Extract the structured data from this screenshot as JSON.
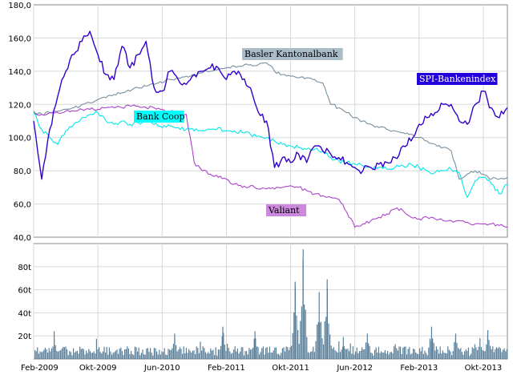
{
  "chart_data": [
    {
      "type": "line",
      "title": "",
      "xlabel": "",
      "ylabel": "",
      "ylim": [
        40,
        180
      ],
      "grid": true,
      "x_range": [
        "2009-02",
        "2014-01"
      ],
      "x_ticks": [
        "Feb-2009",
        "Okt-2009",
        "Jun-2010",
        "Feb-2011",
        "Okt-2011",
        "Jun-2012",
        "Feb-2013",
        "Okt-2013"
      ],
      "y_ticks": [
        "40,0",
        "60,0",
        "80,0",
        "100,0",
        "120,0",
        "140,0",
        "160,0",
        "180,0"
      ],
      "series": [
        {
          "name": "SPI-Bankenindex",
          "color": "#3300cc",
          "label_bg": "#2200dd",
          "label_fg": "#ffffff",
          "x": [
            "2009-02",
            "2009-03",
            "2009-04",
            "2009-05",
            "2009-06",
            "2009-07",
            "2009-08",
            "2009-09",
            "2009-10",
            "2009-11",
            "2009-12",
            "2010-01",
            "2010-02",
            "2010-03",
            "2010-04",
            "2010-05",
            "2010-06",
            "2010-07",
            "2010-08",
            "2010-09",
            "2010-10",
            "2010-11",
            "2010-12",
            "2011-01",
            "2011-02",
            "2011-03",
            "2011-04",
            "2011-05",
            "2011-06",
            "2011-07",
            "2011-08",
            "2011-09",
            "2011-10",
            "2011-11",
            "2011-12",
            "2012-01",
            "2012-02",
            "2012-03",
            "2012-04",
            "2012-05",
            "2012-06",
            "2012-07",
            "2012-08",
            "2012-09",
            "2012-10",
            "2012-11",
            "2012-12",
            "2013-01",
            "2013-02",
            "2013-03",
            "2013-04",
            "2013-05",
            "2013-06",
            "2013-07",
            "2013-08",
            "2013-09",
            "2013-10",
            "2013-11",
            "2013-12",
            "2014-01"
          ],
          "values": [
            110,
            75,
            105,
            125,
            140,
            150,
            158,
            164,
            150,
            138,
            135,
            155,
            142,
            150,
            158,
            130,
            128,
            140,
            135,
            132,
            138,
            140,
            142,
            142,
            135,
            140,
            135,
            130,
            115,
            110,
            82,
            88,
            85,
            90,
            85,
            95,
            92,
            90,
            88,
            85,
            82,
            80,
            82,
            84,
            85,
            88,
            95,
            98,
            108,
            112,
            115,
            120,
            120,
            110,
            108,
            120,
            128,
            118,
            112,
            118
          ]
        },
        {
          "name": "Basler Kantonalbank",
          "color": "#7890a0",
          "label_bg": "#a9bcc7",
          "label_fg": "#000000",
          "x": [
            "2009-02",
            "2009-03",
            "2009-04",
            "2009-05",
            "2009-06",
            "2009-07",
            "2009-08",
            "2009-09",
            "2009-10",
            "2009-11",
            "2009-12",
            "2010-01",
            "2010-02",
            "2010-03",
            "2010-04",
            "2010-05",
            "2010-06",
            "2010-07",
            "2010-08",
            "2010-09",
            "2010-10",
            "2010-11",
            "2010-12",
            "2011-01",
            "2011-02",
            "2011-03",
            "2011-04",
            "2011-05",
            "2011-06",
            "2011-07",
            "2011-08",
            "2011-09",
            "2011-10",
            "2011-11",
            "2011-12",
            "2012-01",
            "2012-02",
            "2012-03",
            "2012-04",
            "2012-05",
            "2012-06",
            "2012-07",
            "2012-08",
            "2012-09",
            "2012-10",
            "2012-11",
            "2012-12",
            "2013-01",
            "2013-02",
            "2013-03",
            "2013-04",
            "2013-05",
            "2013-06",
            "2013-07",
            "2013-08",
            "2013-09",
            "2013-10",
            "2013-11",
            "2013-12",
            "2014-01"
          ],
          "values": [
            116,
            114,
            115,
            116,
            117,
            118,
            120,
            121,
            123,
            124,
            126,
            127,
            128,
            130,
            131,
            132,
            133,
            135,
            136,
            137,
            138,
            139,
            140,
            141,
            142,
            143,
            143,
            144,
            144,
            145,
            140,
            138,
            137,
            136,
            136,
            135,
            133,
            120,
            118,
            115,
            112,
            110,
            108,
            106,
            105,
            104,
            103,
            102,
            100,
            98,
            96,
            94,
            92,
            75,
            78,
            80,
            78,
            75,
            75,
            76
          ]
        },
        {
          "name": "Bank Coop",
          "color": "#00e8e8",
          "label_bg": "#00ffff",
          "label_fg": "#000000",
          "x": [
            "2009-02",
            "2009-03",
            "2009-04",
            "2009-05",
            "2009-06",
            "2009-07",
            "2009-08",
            "2009-09",
            "2009-10",
            "2009-11",
            "2009-12",
            "2010-01",
            "2010-02",
            "2010-03",
            "2010-04",
            "2010-05",
            "2010-06",
            "2010-07",
            "2010-08",
            "2010-09",
            "2010-10",
            "2010-11",
            "2010-12",
            "2011-01",
            "2011-02",
            "2011-03",
            "2011-04",
            "2011-05",
            "2011-06",
            "2011-07",
            "2011-08",
            "2011-09",
            "2011-10",
            "2011-11",
            "2011-12",
            "2012-01",
            "2012-02",
            "2012-03",
            "2012-04",
            "2012-05",
            "2012-06",
            "2012-07",
            "2012-08",
            "2012-09",
            "2012-10",
            "2012-11",
            "2012-12",
            "2013-01",
            "2013-02",
            "2013-03",
            "2013-04",
            "2013-05",
            "2013-06",
            "2013-07",
            "2013-08",
            "2013-09",
            "2013-10",
            "2013-11",
            "2013-12",
            "2014-01"
          ],
          "values": [
            115,
            105,
            100,
            96,
            104,
            108,
            112,
            114,
            115,
            110,
            108,
            110,
            108,
            109,
            110,
            108,
            106,
            107,
            106,
            105,
            104,
            104,
            105,
            106,
            104,
            104,
            103,
            102,
            101,
            100,
            98,
            96,
            95,
            94,
            93,
            93,
            92,
            88,
            86,
            85,
            84,
            83,
            82,
            82,
            81,
            82,
            83,
            84,
            82,
            80,
            79,
            80,
            81,
            79,
            64,
            74,
            76,
            72,
            66,
            72
          ]
        },
        {
          "name": "Valiant",
          "color": "#aa44cc",
          "label_bg": "#cc88dd",
          "label_fg": "#000000",
          "x": [
            "2009-02",
            "2009-03",
            "2009-04",
            "2009-05",
            "2009-06",
            "2009-07",
            "2009-08",
            "2009-09",
            "2009-10",
            "2009-11",
            "2009-12",
            "2010-01",
            "2010-02",
            "2010-03",
            "2010-04",
            "2010-05",
            "2010-06",
            "2010-07",
            "2010-08",
            "2010-09",
            "2010-10",
            "2010-11",
            "2010-12",
            "2011-01",
            "2011-02",
            "2011-03",
            "2011-04",
            "2011-05",
            "2011-06",
            "2011-07",
            "2011-08",
            "2011-09",
            "2011-10",
            "2011-11",
            "2011-12",
            "2012-01",
            "2012-02",
            "2012-03",
            "2012-04",
            "2012-05",
            "2012-06",
            "2012-07",
            "2012-08",
            "2012-09",
            "2012-10",
            "2012-11",
            "2012-12",
            "2013-01",
            "2013-02",
            "2013-03",
            "2013-04",
            "2013-05",
            "2013-06",
            "2013-07",
            "2013-08",
            "2013-09",
            "2013-10",
            "2013-11",
            "2013-12",
            "2014-01"
          ],
          "values": [
            115,
            114,
            115,
            115,
            116,
            116,
            117,
            117,
            117,
            118,
            118,
            118,
            119,
            119,
            118,
            118,
            117,
            116,
            115,
            114,
            85,
            80,
            78,
            76,
            75,
            72,
            70,
            71,
            69,
            69,
            69,
            70,
            71,
            70,
            68,
            66,
            65,
            64,
            63,
            55,
            46,
            48,
            50,
            52,
            54,
            57,
            56,
            52,
            51,
            52,
            51,
            50,
            50,
            50,
            49,
            48,
            48,
            48,
            47,
            46
          ]
        }
      ]
    },
    {
      "type": "bar",
      "title": "",
      "xlabel": "",
      "ylabel": "",
      "ylim": [
        0,
        100
      ],
      "y_ticks": [
        "20t",
        "40t",
        "60t",
        "80t"
      ],
      "color": "#5a7f99",
      "volume_peaks": [
        {
          "x": "2009-04",
          "value": 24
        },
        {
          "x": "2010-07",
          "value": 22
        },
        {
          "x": "2011-01",
          "value": 28
        },
        {
          "x": "2011-05",
          "value": 24
        },
        {
          "x": "2011-10",
          "value": 67
        },
        {
          "x": "2011-11",
          "value": 95
        },
        {
          "x": "2012-01",
          "value": 58
        },
        {
          "x": "2012-02",
          "value": 69
        },
        {
          "x": "2012-04",
          "value": 19
        },
        {
          "x": "2012-07",
          "value": 22
        },
        {
          "x": "2013-03",
          "value": 28
        },
        {
          "x": "2013-06",
          "value": 22
        },
        {
          "x": "2013-10",
          "value": 25
        }
      ]
    }
  ]
}
